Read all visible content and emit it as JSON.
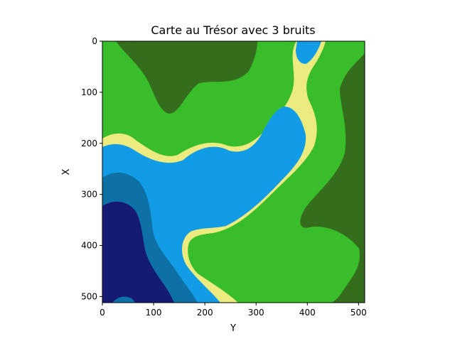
{
  "chart_data": {
    "type": "heatmap",
    "title": "Carte au Trésor avec 3 bruits",
    "xlabel": "Y",
    "ylabel": "X",
    "xlim": [
      0,
      512
    ],
    "ylim": [
      512,
      0
    ],
    "xticks": [
      "0",
      "100",
      "200",
      "300",
      "400",
      "500"
    ],
    "yticks": [
      "0",
      "100",
      "200",
      "300",
      "400",
      "500"
    ],
    "colormap": "terrain-like",
    "regions": [
      {
        "name": "deep water",
        "color": "#151a72"
      },
      {
        "name": "medium water",
        "color": "#0d71a6"
      },
      {
        "name": "shallow water",
        "color": "#129ce6"
      },
      {
        "name": "sand",
        "color": "#ebeb80"
      },
      {
        "name": "grass",
        "color": "#39bd2b"
      },
      {
        "name": "forest",
        "color": "#346e1d"
      }
    ]
  }
}
